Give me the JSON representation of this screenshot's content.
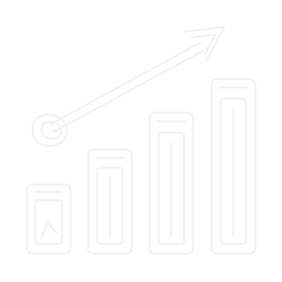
{
  "graphic": {
    "icon": "growth-chart-arrow-icon",
    "background_color": "#ffffff",
    "stroke_color": "#f2f2f2",
    "bars": [
      {
        "name": "bar-1"
      },
      {
        "name": "bar-2"
      },
      {
        "name": "bar-3"
      },
      {
        "name": "bar-4"
      }
    ]
  }
}
